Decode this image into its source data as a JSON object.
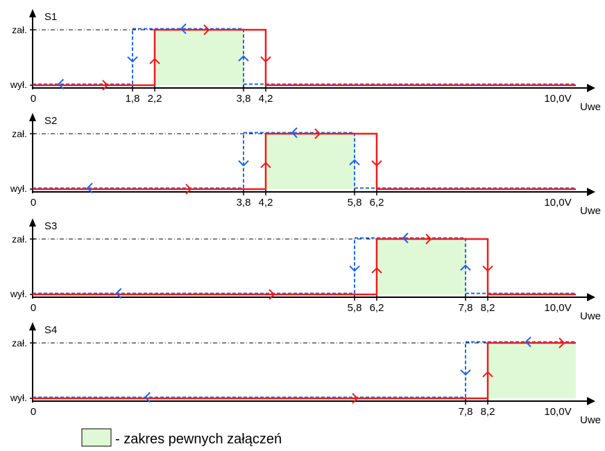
{
  "colors": {
    "rising": "#ee1c1c",
    "falling": "#1f64ee",
    "fill": "#dff9d6",
    "axis": "#000000"
  },
  "chart_data": {
    "type": "diagram",
    "x_unit": "Uwe",
    "x_max_label": "10,0V",
    "y_levels": {
      "on": "zał.",
      "off": "wył."
    },
    "x_origin_label": "0",
    "panels": [
      {
        "title": "S1",
        "falling_on": 1.8,
        "rising_on": 2.2,
        "falling_off": 3.8,
        "rising_off": 4.2,
        "ticks": [
          {
            "v": 1.8,
            "label": "1,8"
          },
          {
            "v": 2.2,
            "label": "2,2"
          },
          {
            "v": 3.8,
            "label": "3,8"
          },
          {
            "v": 4.2,
            "label": "4,2"
          }
        ]
      },
      {
        "title": "S2",
        "falling_on": 3.8,
        "rising_on": 4.2,
        "falling_off": 5.8,
        "rising_off": 6.2,
        "ticks": [
          {
            "v": 3.8,
            "label": "3,8"
          },
          {
            "v": 4.2,
            "label": "4,2"
          },
          {
            "v": 5.8,
            "label": "5,8"
          },
          {
            "v": 6.2,
            "label": "6,2"
          }
        ]
      },
      {
        "title": "S3",
        "falling_on": 5.8,
        "rising_on": 6.2,
        "falling_off": 7.8,
        "rising_off": 8.2,
        "ticks": [
          {
            "v": 5.8,
            "label": "5,8"
          },
          {
            "v": 6.2,
            "label": "6,2"
          },
          {
            "v": 7.8,
            "label": "7,8"
          },
          {
            "v": 8.2,
            "label": "8,2"
          }
        ]
      },
      {
        "title": "S4",
        "falling_on": 7.8,
        "rising_on": 8.2,
        "falling_off": null,
        "rising_off": null,
        "ticks": [
          {
            "v": 7.8,
            "label": "7,8"
          },
          {
            "v": 8.2,
            "label": "8,2"
          }
        ]
      }
    ]
  },
  "legend": {
    "text": "- zakres pewnych załączeń"
  }
}
